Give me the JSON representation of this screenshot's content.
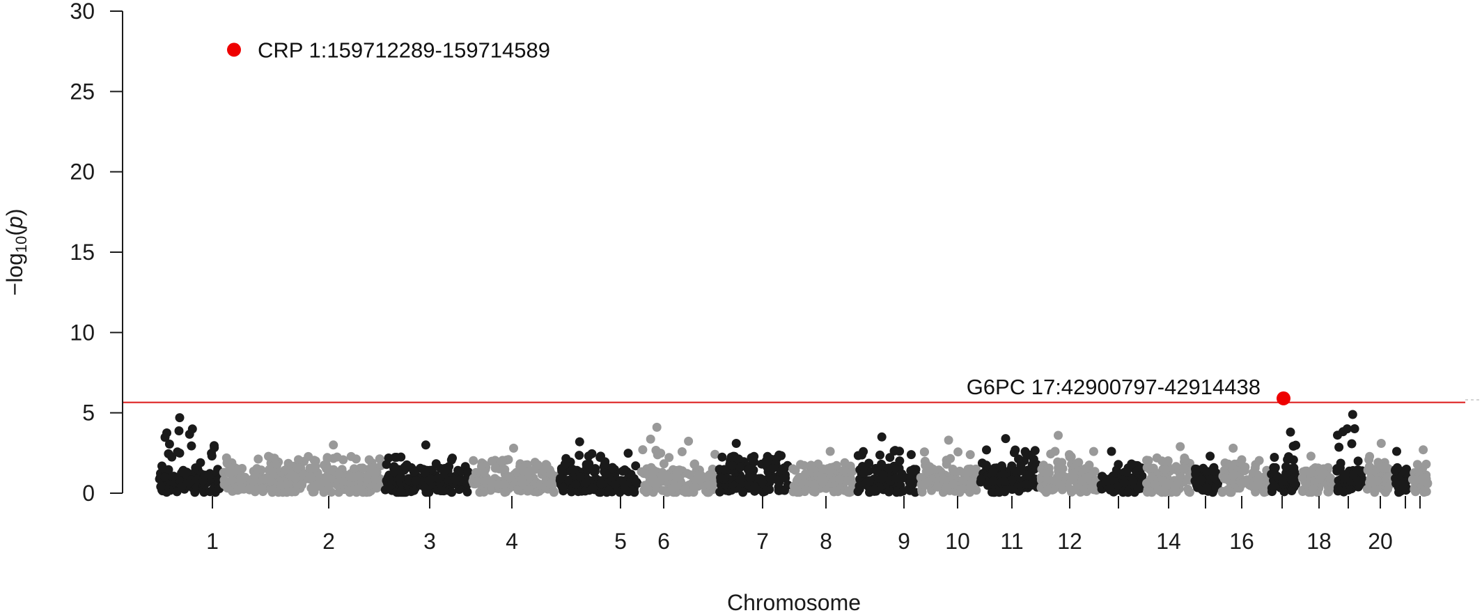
{
  "chart_data": {
    "type": "scatter",
    "subtype": "manhattan",
    "title": "",
    "xlabel": "Chromosome",
    "ylabel_prefix": "−log",
    "ylabel_sub": "10",
    "ylabel_open": "(",
    "ylabel_var": "p",
    "ylabel_close": ")",
    "ylim": [
      0,
      30
    ],
    "y_ticks": [
      0,
      5,
      10,
      15,
      20,
      25,
      30
    ],
    "grid": false,
    "legend": "none",
    "point_colors": [
      "#1a1a1a",
      "#999999"
    ],
    "highlight_color": "#ee0000",
    "threshold": {
      "value": 5.65,
      "color": "#dd2222"
    },
    "chromosomes": [
      {
        "id": "1",
        "label": "1",
        "max": 4.7
      },
      {
        "id": "2",
        "label": "2",
        "max": 3.0
      },
      {
        "id": "3",
        "label": "3",
        "max": 3.0
      },
      {
        "id": "4",
        "label": "4",
        "max": 2.8
      },
      {
        "id": "5",
        "label": "5",
        "max": 3.2
      },
      {
        "id": "6",
        "label": "6",
        "max": 4.1
      },
      {
        "id": "7",
        "label": "7",
        "max": 3.1
      },
      {
        "id": "8",
        "label": "8",
        "max": 2.6
      },
      {
        "id": "9",
        "label": "9",
        "max": 3.5
      },
      {
        "id": "10",
        "label": "10",
        "max": 3.3
      },
      {
        "id": "11",
        "label": "11",
        "max": 3.4
      },
      {
        "id": "12",
        "label": "12",
        "max": 3.6
      },
      {
        "id": "13",
        "label": "",
        "max": 2.6
      },
      {
        "id": "14",
        "label": "14",
        "max": 2.9
      },
      {
        "id": "15",
        "label": "",
        "max": 2.3
      },
      {
        "id": "16",
        "label": "16",
        "max": 2.8
      },
      {
        "id": "17",
        "label": "",
        "max": 3.8
      },
      {
        "id": "18",
        "label": "18",
        "max": 2.3
      },
      {
        "id": "19",
        "label": "",
        "max": 4.9
      },
      {
        "id": "20",
        "label": "20",
        "max": 3.1
      },
      {
        "id": "21",
        "label": "",
        "max": 2.6
      },
      {
        "id": "22",
        "label": "",
        "max": 2.7
      }
    ],
    "highlighted": [
      {
        "gene": "CRP",
        "chrom": "1",
        "y": 27.6,
        "label": "CRP 1:159712289-159714589"
      },
      {
        "gene": "G6PC",
        "chrom": "17",
        "y": 5.9,
        "label": "G6PC 17:42900797-42914438"
      }
    ]
  }
}
